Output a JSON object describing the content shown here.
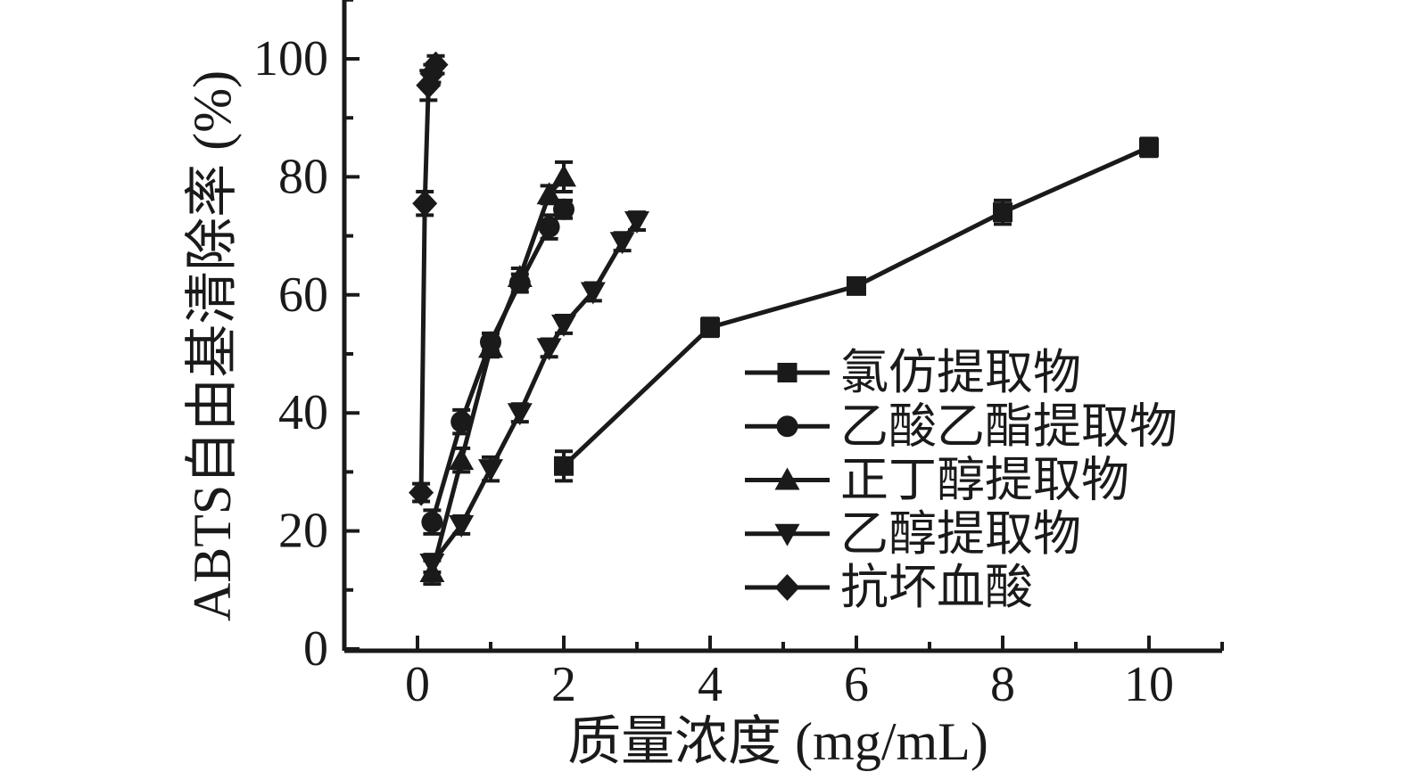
{
  "figure": {
    "background": "#ffffff",
    "ink_color": "#1a1a1a"
  },
  "chart_data": {
    "type": "line",
    "title": "",
    "xlabel": "质量浓度 (mg/mL)",
    "ylabel": "ABTS自由基清除率 (%)",
    "xlim": [
      -1,
      11
    ],
    "ylim": [
      0,
      110
    ],
    "x_major_ticks": [
      0,
      2,
      4,
      6,
      8,
      10
    ],
    "x_minor_ticks": [
      1,
      3,
      5,
      7,
      9,
      11
    ],
    "y_major_ticks": [
      0,
      20,
      40,
      60,
      80,
      100
    ],
    "y_minor_ticks": [
      10,
      30,
      50,
      70,
      90,
      110
    ],
    "grid": false,
    "legend_position": "inside-right",
    "marker_color": "#1a1a1a",
    "line_color": "#1a1a1a",
    "error_bars": true,
    "series": [
      {
        "name": "氯仿提取物",
        "marker": "square",
        "x": [
          2,
          4,
          6,
          8,
          10
        ],
        "y": [
          31,
          54.5,
          61.5,
          74,
          85
        ],
        "yerr": [
          2.5,
          1.5,
          1,
          2,
          1.5
        ]
      },
      {
        "name": "乙酸乙酯提取物",
        "marker": "circle",
        "x": [
          0.2,
          0.6,
          1.0,
          1.4,
          1.8,
          2.0
        ],
        "y": [
          21.5,
          38.5,
          52,
          62,
          71.5,
          74.5
        ],
        "yerr": [
          2,
          2,
          1.5,
          1.5,
          2,
          1.5
        ]
      },
      {
        "name": "正丁醇提取物",
        "marker": "triangle-up",
        "x": [
          0.2,
          0.6,
          1.0,
          1.4,
          1.8,
          2.0
        ],
        "y": [
          13,
          32,
          51,
          63,
          77,
          80
        ],
        "yerr": [
          2,
          2,
          1.5,
          1.5,
          1.5,
          2.5
        ]
      },
      {
        "name": "乙醇提取物",
        "marker": "triangle-down",
        "x": [
          0.2,
          0.6,
          1.0,
          1.4,
          1.8,
          2.0,
          2.4,
          2.8,
          3.0
        ],
        "y": [
          14.5,
          21,
          30.5,
          40,
          51,
          55,
          60.5,
          69,
          72.5
        ],
        "yerr": [
          1.5,
          1.5,
          2,
          1.5,
          1.5,
          1.5,
          1.5,
          1.5,
          1.5
        ]
      },
      {
        "name": "抗坏血酸",
        "marker": "diamond",
        "x": [
          0.05,
          0.1,
          0.15,
          0.2,
          0.25
        ],
        "y": [
          26.5,
          75.5,
          95.5,
          97.5,
          99
        ],
        "yerr": [
          1.5,
          2,
          2.5,
          1.5,
          1.5
        ]
      }
    ]
  }
}
